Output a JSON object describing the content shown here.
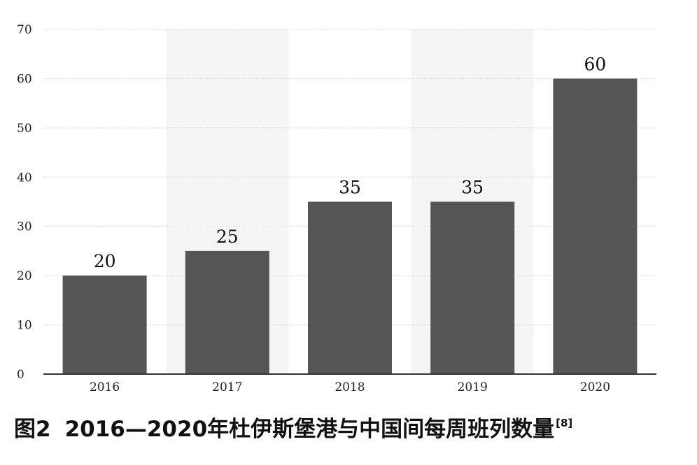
{
  "chart_data": {
    "type": "bar",
    "categories": [
      "2016",
      "2017",
      "2018",
      "2019",
      "2020"
    ],
    "values": [
      20,
      25,
      35,
      35,
      60
    ],
    "data_labels": [
      "20",
      "25",
      "35",
      "35",
      "60"
    ],
    "y_ticks": [
      "0",
      "10",
      "20",
      "30",
      "40",
      "50",
      "60",
      "70"
    ],
    "ylim": [
      0,
      70
    ],
    "grid": true,
    "legend": "none",
    "bar_color": "#555555",
    "band_color": "#f5f5f5",
    "grid_color": "#d4d4d4"
  },
  "caption": {
    "figure": "图2",
    "text": "2016—2020年杜伊斯堡港与中国间每周班列数量",
    "ref": "[8]"
  }
}
